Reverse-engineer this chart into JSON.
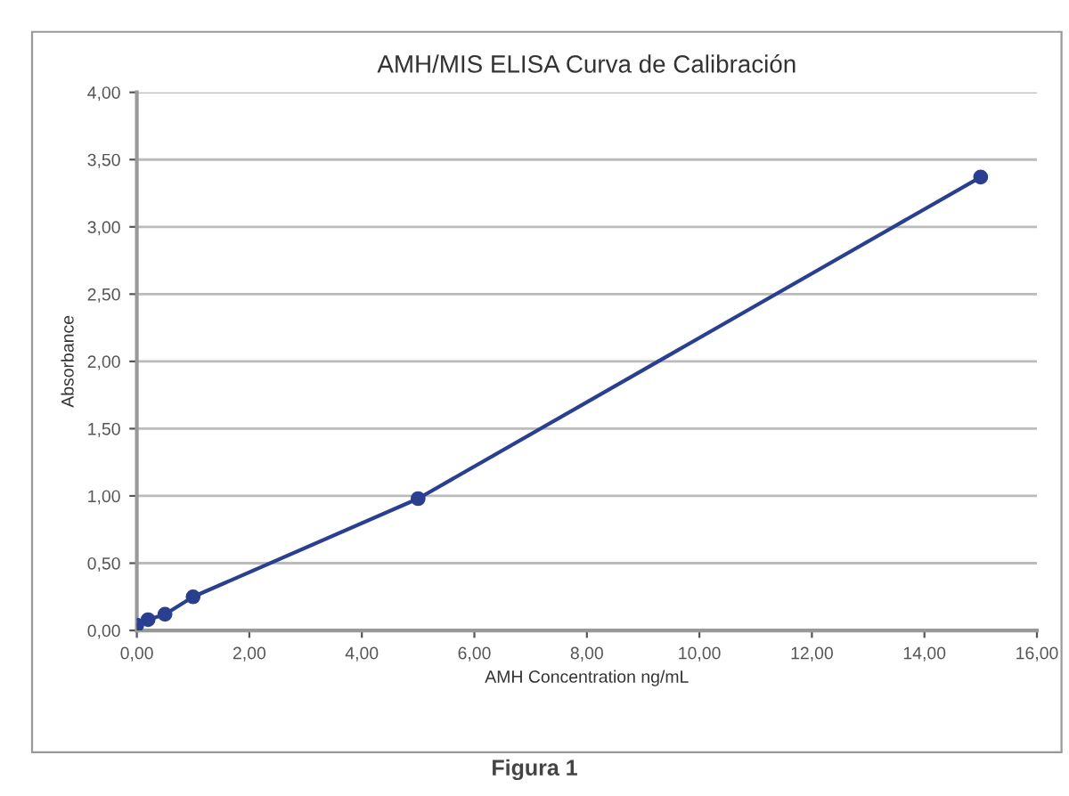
{
  "chart_data": {
    "type": "line",
    "title": "AMH/MIS ELISA Curva de Calibración",
    "xlabel": "AMH Concentration ng/mL",
    "ylabel": "Absorbance",
    "annotations": [
      "Figura 1"
    ],
    "series": [
      {
        "color": "#2a3f8f",
        "x": [
          0,
          0.2,
          0.5,
          1,
          5,
          15
        ],
        "values": [
          0.04,
          0.08,
          0.12,
          0.25,
          0.98,
          3.37
        ]
      }
    ],
    "xlim": [
      0,
      16
    ],
    "ylim": [
      0,
      4
    ],
    "xticks": [
      {
        "value": 0,
        "label": "0,00"
      },
      {
        "value": 2,
        "label": "2,00"
      },
      {
        "value": 4,
        "label": "4,00"
      },
      {
        "value": 6,
        "label": "6,00"
      },
      {
        "value": 8,
        "label": "8,00"
      },
      {
        "value": 10,
        "label": "10,00"
      },
      {
        "value": 12,
        "label": "12,00"
      },
      {
        "value": 14,
        "label": "14,00"
      },
      {
        "value": 16,
        "label": "16,00"
      }
    ],
    "yticks": [
      {
        "value": 0,
        "label": "0,00"
      },
      {
        "value": 0.5,
        "label": "0,50"
      },
      {
        "value": 1,
        "label": "1,00"
      },
      {
        "value": 1.5,
        "label": "1,50"
      },
      {
        "value": 2,
        "label": "2,00"
      },
      {
        "value": 2.5,
        "label": "2,50"
      },
      {
        "value": 3,
        "label": "3,00"
      },
      {
        "value": 3.5,
        "label": "3,50"
      },
      {
        "value": 4,
        "label": "4,00"
      }
    ],
    "grid": "y",
    "marker": "circle",
    "line_style": "solid",
    "legend": false
  }
}
